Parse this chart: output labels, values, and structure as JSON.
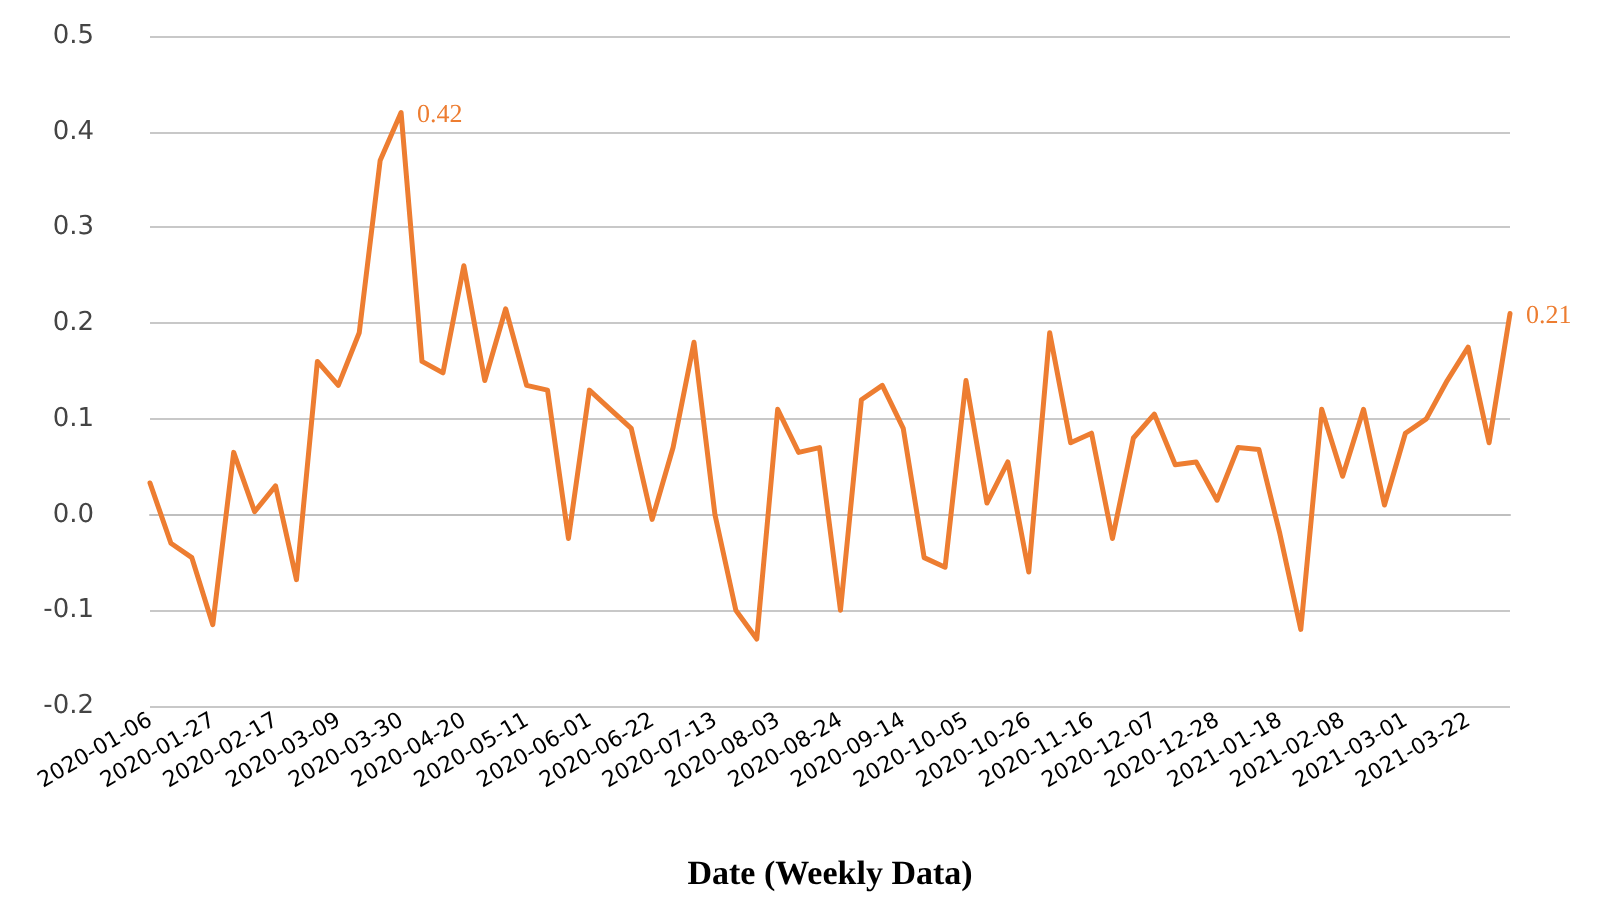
{
  "chart_data": {
    "type": "line",
    "xlabel": "Date (Weekly Data)",
    "categories": [
      "2020-01-06",
      null,
      null,
      "2020-01-27",
      null,
      null,
      "2020-02-17",
      null,
      null,
      "2020-03-09",
      null,
      null,
      "2020-03-30",
      null,
      null,
      "2020-04-20",
      null,
      null,
      "2020-05-11",
      null,
      null,
      "2020-06-01",
      null,
      null,
      "2020-06-22",
      null,
      null,
      "2020-07-13",
      null,
      null,
      "2020-08-03",
      null,
      null,
      "2020-08-24",
      null,
      null,
      "2020-09-14",
      null,
      null,
      "2020-10-05",
      null,
      null,
      "2020-10-26",
      null,
      null,
      "2020-11-16",
      null,
      null,
      "2020-12-07",
      null,
      null,
      "2020-12-28",
      null,
      null,
      "2021-01-18",
      null,
      null,
      "2021-02-08",
      null,
      null,
      "2021-03-01",
      null,
      null,
      "2021-03-22",
      null,
      null
    ],
    "series": [
      {
        "color": "#ed7d31",
        "values": [
          0.033,
          -0.03,
          -0.045,
          -0.115,
          0.065,
          0.003,
          0.03,
          -0.068,
          0.16,
          0.135,
          0.19,
          0.37,
          0.42,
          0.16,
          0.148,
          0.26,
          0.14,
          0.215,
          0.135,
          0.13,
          -0.025,
          0.13,
          0.11,
          0.09,
          -0.005,
          0.07,
          0.18,
          0.0,
          -0.1,
          -0.13,
          0.11,
          0.065,
          0.07,
          -0.1,
          0.12,
          0.135,
          0.09,
          -0.045,
          -0.055,
          0.14,
          0.012,
          0.055,
          -0.06,
          0.19,
          0.075,
          0.085,
          -0.025,
          0.08,
          0.105,
          0.052,
          0.055,
          0.015,
          0.07,
          0.068,
          -0.02,
          -0.12,
          0.11,
          0.04,
          0.11,
          0.01,
          0.085,
          0.1,
          0.14,
          0.175,
          0.075,
          0.21
        ],
        "value_labels": [
          null,
          null,
          null,
          null,
          null,
          null,
          null,
          null,
          null,
          null,
          null,
          null,
          "0.42",
          null,
          null,
          null,
          null,
          null,
          null,
          null,
          null,
          null,
          null,
          null,
          null,
          null,
          null,
          null,
          null,
          null,
          null,
          null,
          null,
          null,
          null,
          null,
          null,
          null,
          null,
          null,
          null,
          null,
          null,
          null,
          null,
          null,
          null,
          null,
          null,
          null,
          null,
          null,
          null,
          null,
          null,
          null,
          null,
          null,
          null,
          null,
          null,
          null,
          null,
          null,
          null,
          "0.21"
        ]
      }
    ],
    "ylim": [
      -0.2,
      0.5
    ],
    "yticks": [
      {
        "value": -0.2,
        "label": "-0.2"
      },
      {
        "value": -0.1,
        "label": "-0.1"
      },
      {
        "value": 0,
        "label": "0.0"
      },
      {
        "value": 0.1,
        "label": "0.1"
      },
      {
        "value": 0.2,
        "label": "0.2"
      },
      {
        "value": 0.3,
        "label": "0.3"
      },
      {
        "value": 0.4,
        "label": "0.4"
      },
      {
        "value": 0.5,
        "label": "0.5"
      }
    ],
    "grid": "y",
    "marker": "none",
    "line_style": "solid"
  }
}
